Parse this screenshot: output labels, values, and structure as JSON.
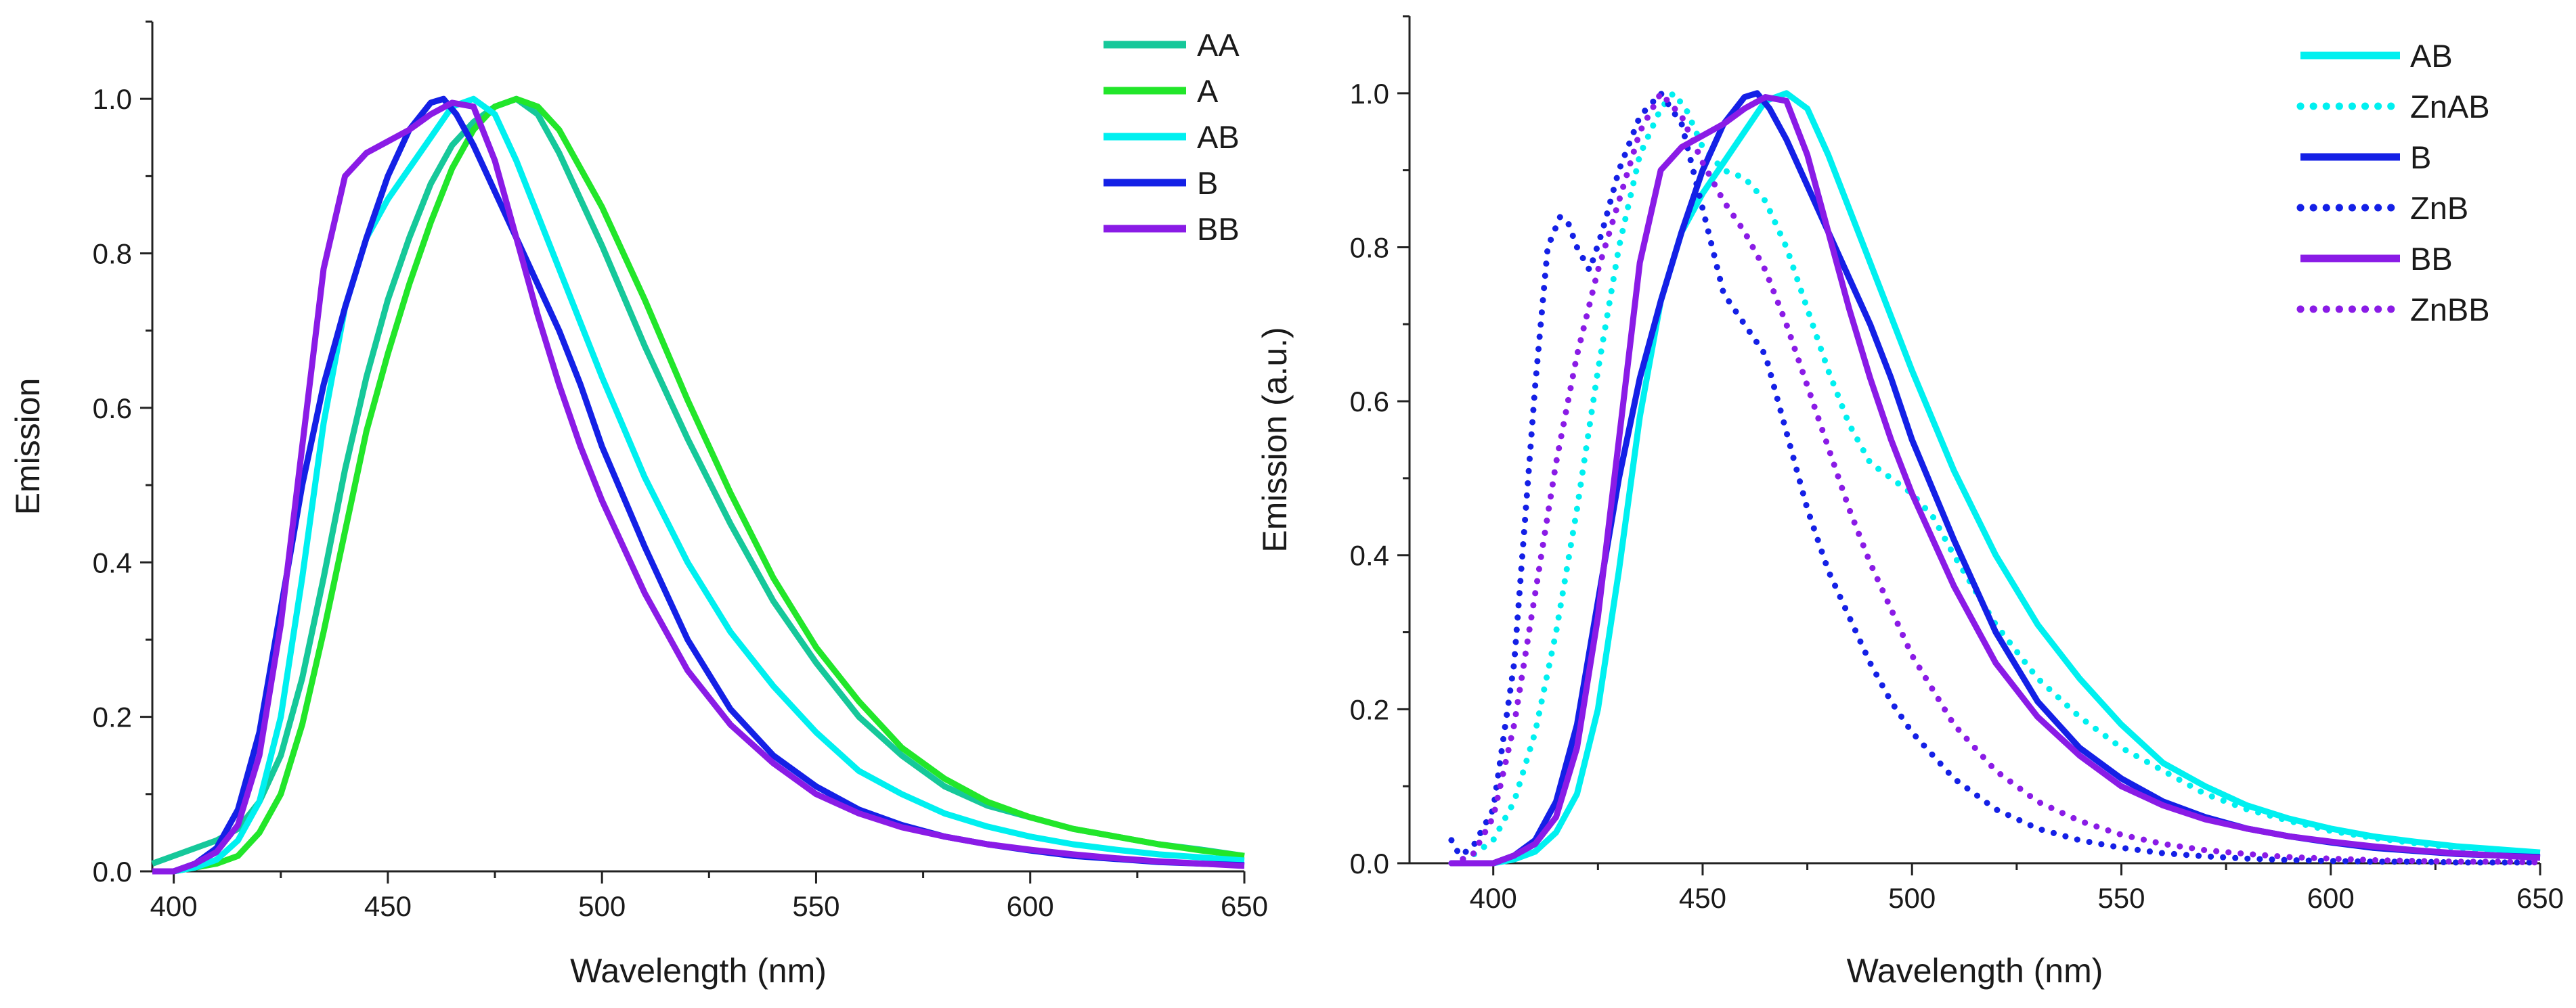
{
  "chart_data": [
    {
      "id": "left",
      "type": "line",
      "title": "",
      "xlabel": "Wavelength (nm)",
      "ylabel": "Emission",
      "xlim": [
        395,
        650
      ],
      "ylim": [
        0,
        1.1
      ],
      "xticks": [
        400,
        450,
        500,
        550,
        600,
        650
      ],
      "yticks": [
        0.0,
        0.2,
        0.4,
        0.6,
        0.8,
        1.0
      ],
      "grid": false,
      "legend_position": "top-right",
      "series": [
        {
          "name": "AA",
          "color": "#16c89a",
          "style": "solid",
          "x": [
            395,
            400,
            405,
            410,
            415,
            420,
            425,
            430,
            435,
            440,
            445,
            450,
            455,
            460,
            465,
            470,
            475,
            480,
            485,
            490,
            495,
            500,
            510,
            520,
            530,
            540,
            550,
            560,
            570,
            580,
            590,
            600,
            610,
            620,
            630,
            640,
            650
          ],
          "y": [
            0.01,
            0.02,
            0.03,
            0.04,
            0.055,
            0.09,
            0.15,
            0.25,
            0.38,
            0.52,
            0.64,
            0.74,
            0.82,
            0.89,
            0.94,
            0.97,
            0.99,
            1.0,
            0.98,
            0.93,
            0.87,
            0.81,
            0.68,
            0.56,
            0.45,
            0.35,
            0.27,
            0.2,
            0.15,
            0.11,
            0.085,
            0.07,
            0.055,
            0.045,
            0.035,
            0.028,
            0.02
          ]
        },
        {
          "name": "A",
          "color": "#22e62a",
          "style": "solid",
          "x": [
            395,
            400,
            405,
            410,
            415,
            420,
            425,
            430,
            435,
            440,
            445,
            450,
            455,
            460,
            465,
            470,
            475,
            480,
            485,
            490,
            495,
            500,
            510,
            520,
            530,
            540,
            550,
            560,
            570,
            580,
            590,
            600,
            610,
            620,
            630,
            640,
            650
          ],
          "y": [
            0.0,
            0.0,
            0.005,
            0.01,
            0.02,
            0.05,
            0.1,
            0.19,
            0.31,
            0.44,
            0.57,
            0.67,
            0.76,
            0.84,
            0.91,
            0.96,
            0.99,
            1.0,
            0.99,
            0.96,
            0.91,
            0.86,
            0.74,
            0.61,
            0.49,
            0.38,
            0.29,
            0.22,
            0.16,
            0.12,
            0.09,
            0.07,
            0.055,
            0.045,
            0.035,
            0.027,
            0.02
          ]
        },
        {
          "name": "AB",
          "color": "#00f0f0",
          "style": "solid",
          "x": [
            395,
            400,
            405,
            410,
            415,
            420,
            425,
            430,
            435,
            440,
            445,
            450,
            455,
            460,
            465,
            470,
            475,
            480,
            485,
            490,
            495,
            500,
            510,
            520,
            530,
            540,
            550,
            560,
            570,
            580,
            590,
            600,
            610,
            620,
            630,
            640,
            650
          ],
          "y": [
            0.0,
            0.0,
            0.005,
            0.015,
            0.04,
            0.09,
            0.2,
            0.38,
            0.58,
            0.73,
            0.82,
            0.87,
            0.91,
            0.95,
            0.99,
            1.0,
            0.98,
            0.92,
            0.85,
            0.78,
            0.71,
            0.64,
            0.51,
            0.4,
            0.31,
            0.24,
            0.18,
            0.13,
            0.1,
            0.075,
            0.058,
            0.045,
            0.035,
            0.028,
            0.022,
            0.018,
            0.014
          ]
        },
        {
          "name": "B",
          "color": "#1420e6",
          "style": "solid",
          "x": [
            395,
            400,
            405,
            410,
            415,
            420,
            425,
            430,
            435,
            440,
            445,
            450,
            455,
            460,
            463,
            466,
            470,
            475,
            480,
            485,
            490,
            495,
            500,
            510,
            520,
            530,
            540,
            550,
            560,
            570,
            580,
            590,
            600,
            610,
            620,
            630,
            640,
            650
          ],
          "y": [
            0.0,
            0.0,
            0.01,
            0.03,
            0.08,
            0.18,
            0.34,
            0.5,
            0.63,
            0.73,
            0.82,
            0.9,
            0.96,
            0.995,
            1.0,
            0.98,
            0.94,
            0.88,
            0.82,
            0.76,
            0.7,
            0.63,
            0.55,
            0.42,
            0.3,
            0.21,
            0.15,
            0.11,
            0.08,
            0.06,
            0.045,
            0.035,
            0.027,
            0.02,
            0.016,
            0.012,
            0.01,
            0.008
          ]
        },
        {
          "name": "BB",
          "color": "#8a1be6",
          "style": "solid",
          "x": [
            395,
            400,
            405,
            410,
            415,
            420,
            425,
            430,
            435,
            440,
            445,
            450,
            455,
            460,
            465,
            470,
            475,
            480,
            485,
            490,
            495,
            500,
            510,
            520,
            530,
            540,
            550,
            560,
            570,
            580,
            590,
            600,
            610,
            620,
            630,
            640,
            650
          ],
          "y": [
            0.0,
            0.0,
            0.01,
            0.025,
            0.06,
            0.15,
            0.32,
            0.55,
            0.78,
            0.9,
            0.93,
            0.945,
            0.96,
            0.98,
            0.995,
            0.99,
            0.92,
            0.82,
            0.72,
            0.63,
            0.55,
            0.48,
            0.36,
            0.26,
            0.19,
            0.14,
            0.1,
            0.075,
            0.057,
            0.045,
            0.035,
            0.028,
            0.022,
            0.017,
            0.013,
            0.01,
            0.007
          ]
        }
      ]
    },
    {
      "id": "right",
      "type": "line",
      "title": "",
      "xlabel": "Wavelength (nm)",
      "ylabel": "Emission (a.u.)",
      "xlim": [
        380,
        650
      ],
      "ylim": [
        0,
        1.1
      ],
      "xticks": [
        400,
        450,
        500,
        550,
        600,
        650
      ],
      "yticks": [
        0.0,
        0.2,
        0.4,
        0.6,
        0.8,
        1.0
      ],
      "grid": false,
      "legend_position": "top-right",
      "series": [
        {
          "name": "AB",
          "color": "#00f0f0",
          "style": "solid",
          "x": [
            390,
            395,
            400,
            405,
            410,
            415,
            420,
            425,
            430,
            435,
            440,
            445,
            450,
            455,
            460,
            465,
            470,
            475,
            480,
            485,
            490,
            495,
            500,
            510,
            520,
            530,
            540,
            550,
            560,
            570,
            580,
            590,
            600,
            610,
            620,
            630,
            640,
            650
          ],
          "y": [
            0.0,
            0.0,
            0.0,
            0.005,
            0.015,
            0.04,
            0.09,
            0.2,
            0.38,
            0.58,
            0.73,
            0.82,
            0.87,
            0.91,
            0.95,
            0.99,
            1.0,
            0.98,
            0.92,
            0.85,
            0.78,
            0.71,
            0.64,
            0.51,
            0.4,
            0.31,
            0.24,
            0.18,
            0.13,
            0.1,
            0.075,
            0.058,
            0.045,
            0.035,
            0.028,
            0.022,
            0.018,
            0.014
          ]
        },
        {
          "name": "ZnAB",
          "color": "#00f0f0",
          "style": "dotted",
          "x": [
            390,
            395,
            400,
            405,
            410,
            415,
            420,
            425,
            430,
            435,
            440,
            443,
            446,
            450,
            455,
            460,
            465,
            470,
            475,
            480,
            485,
            490,
            495,
            500,
            505,
            510,
            520,
            530,
            540,
            550,
            560,
            570,
            580,
            590,
            600,
            610,
            620,
            630,
            640,
            650
          ],
          "y": [
            0.0,
            0.01,
            0.03,
            0.08,
            0.17,
            0.3,
            0.46,
            0.64,
            0.8,
            0.92,
            0.98,
            1.0,
            0.98,
            0.93,
            0.9,
            0.89,
            0.86,
            0.8,
            0.72,
            0.64,
            0.57,
            0.52,
            0.5,
            0.48,
            0.45,
            0.4,
            0.31,
            0.24,
            0.19,
            0.15,
            0.12,
            0.09,
            0.07,
            0.055,
            0.042,
            0.033,
            0.026,
            0.02,
            0.015,
            0.011
          ]
        },
        {
          "name": "B",
          "color": "#1420e6",
          "style": "solid",
          "x": [
            390,
            395,
            400,
            405,
            410,
            415,
            420,
            425,
            430,
            435,
            440,
            445,
            450,
            455,
            460,
            463,
            466,
            470,
            475,
            480,
            485,
            490,
            495,
            500,
            510,
            520,
            530,
            540,
            550,
            560,
            570,
            580,
            590,
            600,
            610,
            620,
            630,
            640,
            650
          ],
          "y": [
            0.0,
            0.0,
            0.0,
            0.01,
            0.03,
            0.08,
            0.18,
            0.34,
            0.5,
            0.63,
            0.73,
            0.82,
            0.9,
            0.96,
            0.995,
            1.0,
            0.98,
            0.94,
            0.88,
            0.82,
            0.76,
            0.7,
            0.63,
            0.55,
            0.42,
            0.3,
            0.21,
            0.15,
            0.11,
            0.08,
            0.06,
            0.045,
            0.035,
            0.027,
            0.02,
            0.016,
            0.012,
            0.01,
            0.008
          ]
        },
        {
          "name": "ZnB",
          "color": "#1420e6",
          "style": "dotted",
          "x": [
            390,
            392,
            395,
            400,
            405,
            410,
            413,
            416,
            418,
            420,
            423,
            426,
            430,
            435,
            440,
            445,
            450,
            455,
            460,
            465,
            470,
            475,
            480,
            485,
            490,
            495,
            500,
            510,
            520,
            530,
            540,
            550,
            560,
            570,
            580,
            590,
            600,
            610,
            620,
            630,
            640,
            650
          ],
          "y": [
            0.03,
            0.01,
            0.02,
            0.07,
            0.26,
            0.62,
            0.8,
            0.84,
            0.83,
            0.8,
            0.77,
            0.82,
            0.9,
            0.97,
            1.0,
            0.96,
            0.85,
            0.74,
            0.7,
            0.66,
            0.56,
            0.46,
            0.38,
            0.32,
            0.26,
            0.21,
            0.17,
            0.11,
            0.07,
            0.045,
            0.03,
            0.02,
            0.013,
            0.009,
            0.006,
            0.004,
            0.003,
            0.002,
            0.002,
            0.001,
            0.001,
            0.001
          ]
        },
        {
          "name": "BB",
          "color": "#8a1be6",
          "style": "solid",
          "x": [
            390,
            395,
            400,
            405,
            410,
            415,
            420,
            425,
            430,
            435,
            440,
            445,
            450,
            455,
            460,
            465,
            470,
            475,
            480,
            485,
            490,
            495,
            500,
            510,
            520,
            530,
            540,
            550,
            560,
            570,
            580,
            590,
            600,
            610,
            620,
            630,
            640,
            650
          ],
          "y": [
            0.0,
            0.0,
            0.0,
            0.01,
            0.025,
            0.06,
            0.15,
            0.32,
            0.55,
            0.78,
            0.9,
            0.93,
            0.945,
            0.96,
            0.98,
            0.995,
            0.99,
            0.92,
            0.82,
            0.72,
            0.63,
            0.55,
            0.48,
            0.36,
            0.26,
            0.19,
            0.14,
            0.1,
            0.075,
            0.057,
            0.045,
            0.035,
            0.028,
            0.022,
            0.017,
            0.013,
            0.01,
            0.007
          ]
        },
        {
          "name": "ZnBB",
          "color": "#8a1be6",
          "style": "dotted",
          "x": [
            390,
            395,
            400,
            405,
            410,
            415,
            420,
            425,
            430,
            435,
            440,
            445,
            450,
            455,
            460,
            465,
            470,
            475,
            480,
            485,
            490,
            495,
            500,
            510,
            520,
            530,
            540,
            550,
            560,
            570,
            580,
            590,
            600,
            610,
            620,
            630,
            640,
            650
          ],
          "y": [
            0.0,
            0.01,
            0.06,
            0.18,
            0.35,
            0.52,
            0.66,
            0.77,
            0.86,
            0.95,
            1.0,
            0.97,
            0.91,
            0.86,
            0.82,
            0.77,
            0.7,
            0.62,
            0.54,
            0.46,
            0.39,
            0.33,
            0.27,
            0.18,
            0.12,
            0.08,
            0.055,
            0.037,
            0.025,
            0.017,
            0.012,
            0.008,
            0.006,
            0.004,
            0.003,
            0.002,
            0.002,
            0.001
          ]
        }
      ]
    }
  ]
}
